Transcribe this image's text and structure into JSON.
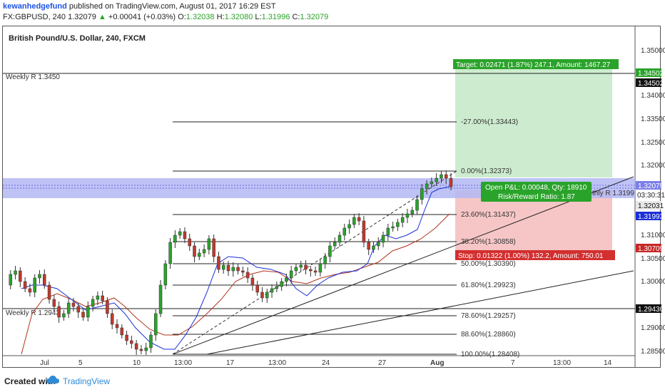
{
  "header": {
    "author": "kewanhedgefund",
    "published": "published on TradingView.com, August 01, 2017 16:29 EST",
    "symbol": "FX:GBPUSD, 240",
    "last": "1.32079",
    "change": "+0.00041 (+0.03%)",
    "o_label": "O:",
    "o_value": "1.32038",
    "h_label": "H:",
    "h_value": "1.32080",
    "l_label": "L:",
    "l_value": "1.31996",
    "c_label": "C:",
    "c_value": "1.32079"
  },
  "chart_title": "British Pound/U.S. Dollar, 240, FXCM",
  "price_axis": [
    "1.35000",
    "1.34000",
    "1.33500",
    "1.32500",
    "1.32000",
    "1.31000",
    "1.30500",
    "1.30000",
    "1.29000",
    "1.28500"
  ],
  "price_markers": {
    "weekly_r_high": "1.34502",
    "weekly_r_high2": "1.34502",
    "current": "1.32079",
    "countdown": "03:30:31",
    "m1": "1.32031",
    "m2": "1.31993",
    "stop": "1.30709",
    "weekly_r_low": "1.29430"
  },
  "time_axis": [
    "Jul",
    "5",
    "10",
    "13:00",
    "17",
    "13:00",
    "24",
    "27",
    "Aug",
    "7",
    "13:00",
    "14"
  ],
  "levels": {
    "weekly_r_top": "Weekly R 1.3450",
    "weekly_r_bottom": "Weekly R 1.2943",
    "monthly": "thly R 1.3199"
  },
  "fib": [
    "-27.00%(1.33443)",
    "0.00%(1.32373)",
    "23.60%(1.31437)",
    "38.20%(1.30858)",
    "50.00%(1.30390)",
    "61.80%(1.29923)",
    "78.60%(1.29257)",
    "88.60%(1.28860)",
    "100.00%(1.28408)"
  ],
  "position": {
    "target": "Target: 0.02471 (1.87%) 247.1, Amount: 1467.27",
    "open_pl": "Open P&L: 0.00048, Qty: 18910",
    "rr": "Risk/Reward Ratio: 1.87",
    "stop": "Stop: 0.01322 (1.00%) 132.2, Amount: 750.01"
  },
  "footer": {
    "created": "Created with",
    "brand": "TradingView"
  },
  "colors": {
    "up_candle": "#2aa32a",
    "down_candle": "#c0392b",
    "target_zone": "#cdeccf",
    "stop_zone": "#f6c6c6",
    "zone_band": "#b3b7f3",
    "ma_blue": "#1a2fd8",
    "ma_red": "#b0331c"
  }
}
